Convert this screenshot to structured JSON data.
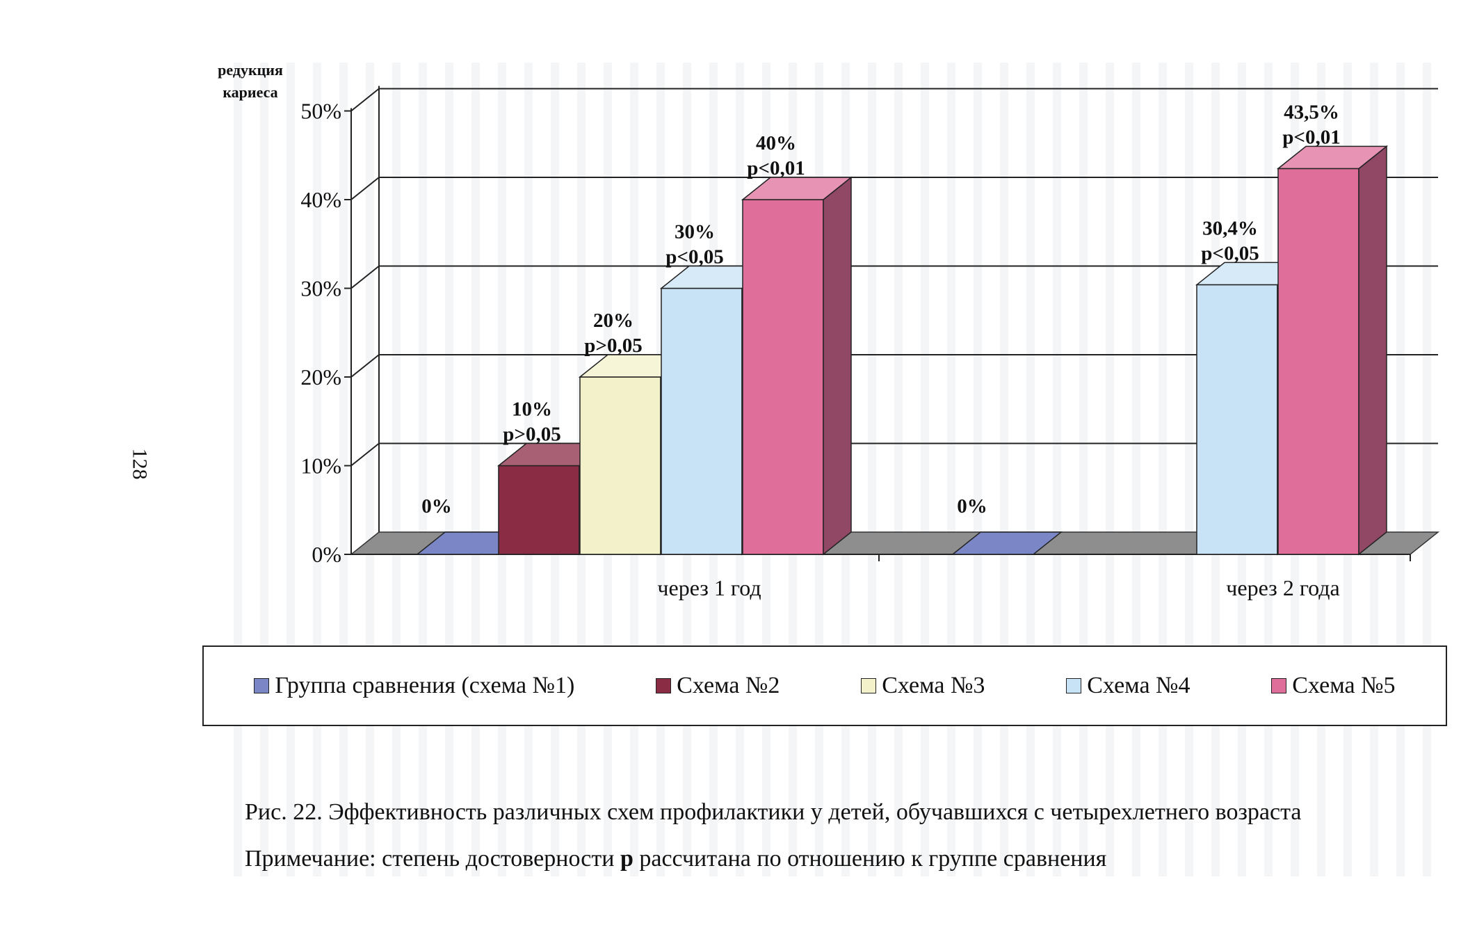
{
  "page": {
    "page_number": "128",
    "caption": "Рис. 22. Эффективность различных схем профилактики у детей, обучавшихся с четырехлетнего  возраста",
    "note_prefix": "Примечание: степень достоверности ",
    "note_bold": "р",
    "note_suffix": " рассчитана по отношению к группе сравнения"
  },
  "chart_data": {
    "type": "bar",
    "ylabel_lines": [
      "редукция",
      "кариеса"
    ],
    "y_ticks": [
      "0%",
      "10%",
      "20%",
      "30%",
      "40%",
      "50%"
    ],
    "ylim": [
      0,
      50
    ],
    "grid": true,
    "legend_position": "bottom",
    "categories": [
      "через 1 год",
      "через 2 года"
    ],
    "series": [
      {
        "name": "Группа сравнения (схема №1)",
        "color": "#7b86c6",
        "values": [
          0,
          0
        ],
        "labels": [
          "0%",
          "0%"
        ],
        "pvalues": [
          "",
          ""
        ]
      },
      {
        "name": "Схема №2",
        "color": "#8b2c45",
        "values": [
          10,
          null
        ],
        "labels": [
          "10%",
          ""
        ],
        "pvalues": [
          "р>0,05",
          ""
        ]
      },
      {
        "name": "Схема №3",
        "color": "#f3f1c9",
        "values": [
          20,
          null
        ],
        "labels": [
          "20%",
          ""
        ],
        "pvalues": [
          "р>0,05",
          ""
        ]
      },
      {
        "name": "Схема №4",
        "color": "#c9e3f6",
        "values": [
          30,
          30.4
        ],
        "labels": [
          "30%",
          "30,4%"
        ],
        "pvalues": [
          "р<0,05",
          "р<0,05"
        ]
      },
      {
        "name": "Схема №5",
        "color": "#df6f9a",
        "values": [
          40,
          43.5
        ],
        "labels": [
          "40%",
          "43,5%"
        ],
        "pvalues": [
          "р<0,01",
          "р<0,01"
        ]
      }
    ]
  }
}
